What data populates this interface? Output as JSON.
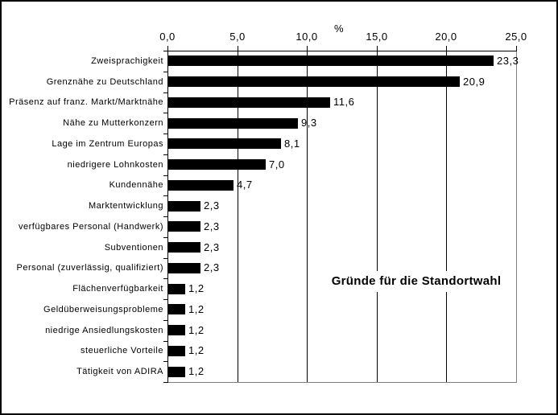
{
  "window": {
    "background": "#ffffff",
    "frame_border_color": "#000000"
  },
  "chart_data": {
    "type": "bar",
    "orientation": "horizontal",
    "title": "Gründe für die Standortwahl",
    "value_axis_title": "%",
    "categories": [
      "Zweisprachigkeit",
      "Grenznähe zu Deutschland",
      "Präsenz auf franz. Markt/Marktnähe",
      "Nähe zu Mutterkonzern",
      "Lage im Zentrum Europas",
      "niedrigere Lohnkosten",
      "Kundennähe",
      "Marktentwicklung",
      "verfügbares Personal (Handwerk)",
      "Subventionen",
      "Personal (zuverlässig, qualifiziert)",
      "Flächenverfügbarkeit",
      "Geldüberweisungsprobleme",
      "niedrige Ansiedlungskosten",
      "steuerliche Vorteile",
      "Tätigkeit von ADIRA"
    ],
    "values": [
      23.3,
      20.9,
      11.6,
      9.3,
      8.1,
      7.0,
      4.7,
      2.3,
      2.3,
      2.3,
      2.3,
      1.2,
      1.2,
      1.2,
      1.2,
      1.2
    ],
    "value_labels": [
      "23,3",
      "20,9",
      "11,6",
      "9,3",
      "8,1",
      "7,0",
      "4,7",
      "2,3",
      "2,3",
      "2,3",
      "2,3",
      "1,2",
      "1,2",
      "1,2",
      "1,2",
      "1,2"
    ],
    "xlim": [
      0,
      25
    ],
    "x_ticks": [
      0,
      5,
      10,
      15,
      20,
      25
    ],
    "x_tick_labels": [
      "0,0",
      "5,0",
      "10,0",
      "15,0",
      "20,0",
      "25,0"
    ],
    "grid": true,
    "legend": "none",
    "bar_color": "#000000",
    "gridline_color": "#000000",
    "axis_color": "#000000",
    "plot_border_color": "#808080",
    "label_color": "#000000"
  }
}
